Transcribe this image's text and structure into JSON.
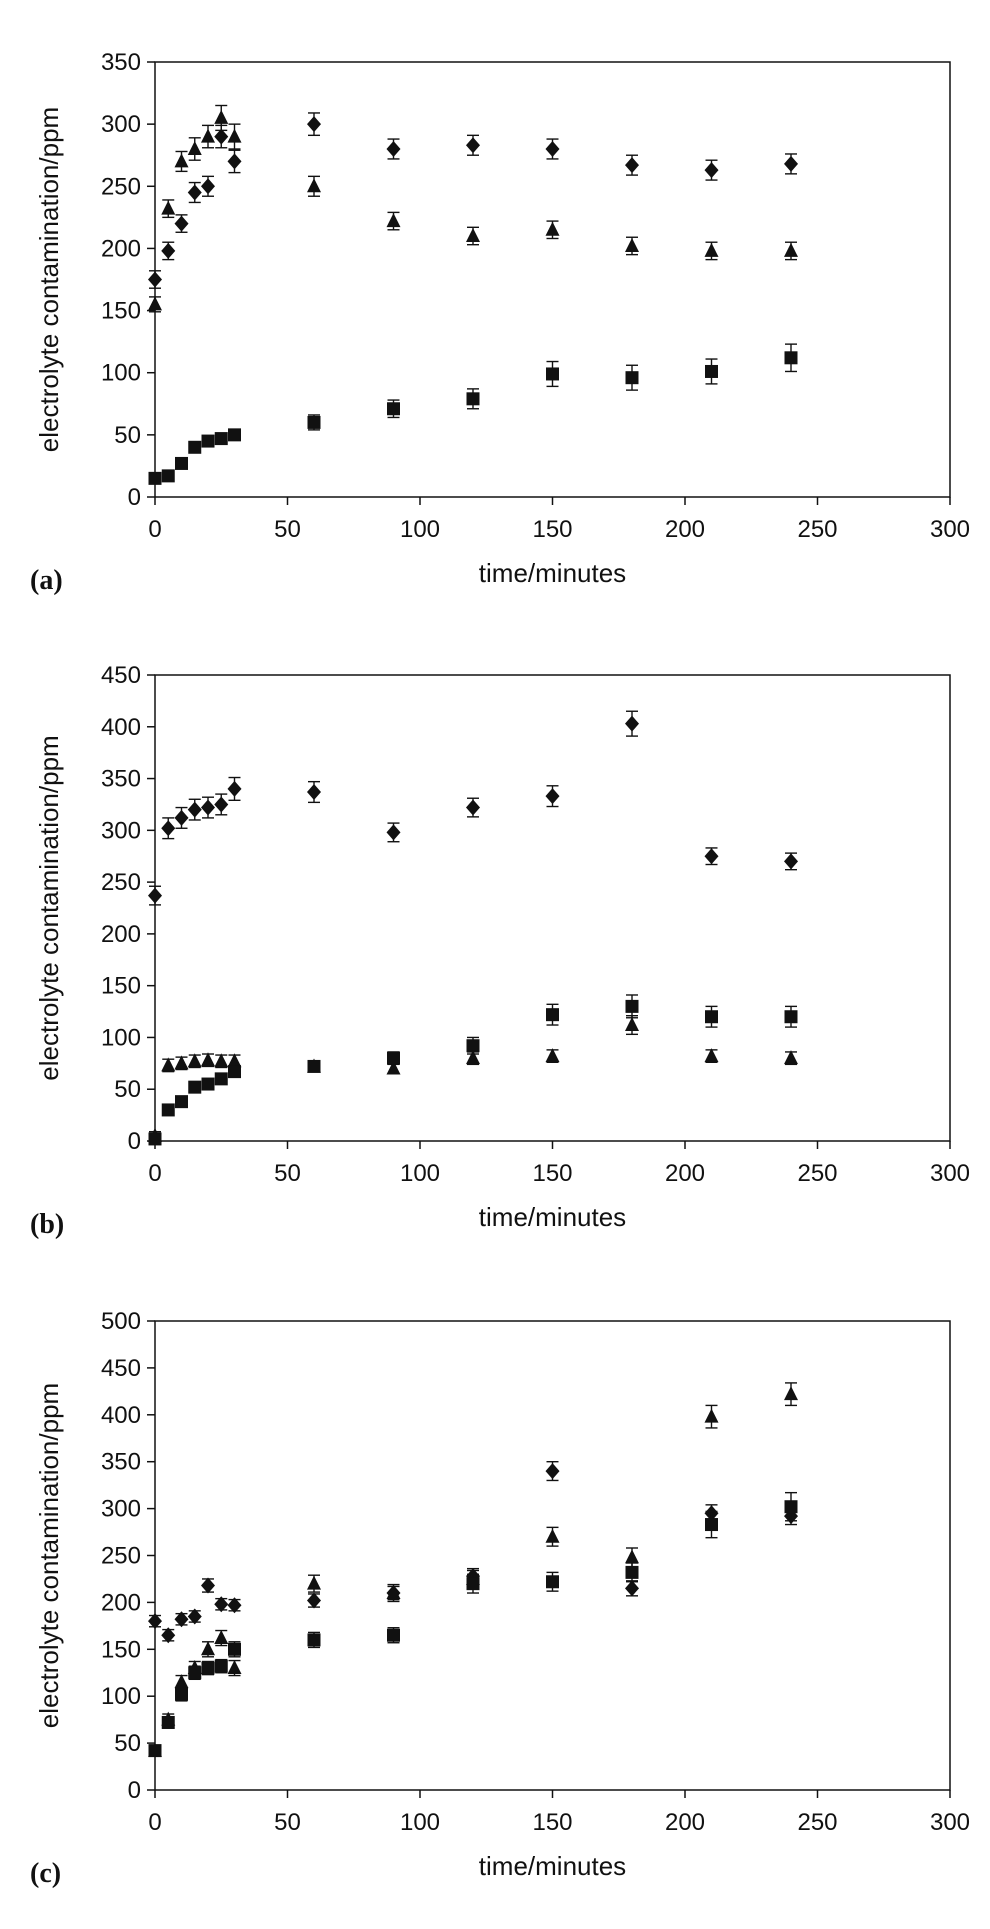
{
  "chart_data": [
    {
      "type": "scatter",
      "panel_label": "(a)",
      "xlabel": "time/minutes",
      "ylabel": "electrolyte contamination/ppm",
      "xlim": [
        0,
        300
      ],
      "ylim": [
        0,
        350
      ],
      "xticks": [
        0,
        50,
        100,
        150,
        200,
        250,
        300
      ],
      "yticks": [
        0,
        50,
        100,
        150,
        200,
        250,
        300,
        350
      ],
      "series": [
        {
          "marker": "diamond",
          "x": [
            0,
            5,
            10,
            15,
            20,
            25,
            30,
            60,
            90,
            120,
            150,
            180,
            210,
            240
          ],
          "y": [
            175,
            198,
            220,
            245,
            250,
            290,
            270,
            300,
            280,
            283,
            280,
            267,
            263,
            268
          ],
          "err": [
            7,
            7,
            7,
            8,
            8,
            9,
            9,
            9,
            8,
            8,
            8,
            8,
            8,
            8
          ]
        },
        {
          "marker": "triangle",
          "x": [
            0,
            5,
            10,
            15,
            20,
            25,
            30,
            60,
            90,
            120,
            150,
            180,
            210,
            240
          ],
          "y": [
            155,
            232,
            270,
            280,
            290,
            305,
            290,
            250,
            222,
            210,
            215,
            202,
            198,
            198
          ],
          "err": [
            6,
            7,
            8,
            9,
            9,
            10,
            10,
            8,
            7,
            7,
            7,
            7,
            7,
            7
          ]
        },
        {
          "marker": "square",
          "x": [
            0,
            5,
            10,
            15,
            20,
            25,
            30,
            60,
            90,
            120,
            150,
            180,
            210,
            240
          ],
          "y": [
            15,
            17,
            27,
            40,
            45,
            47,
            50,
            60,
            71,
            79,
            99,
            96,
            101,
            112
          ],
          "err": [
            3,
            3,
            3,
            3,
            3,
            3,
            3,
            6,
            7,
            8,
            10,
            10,
            10,
            11
          ]
        }
      ]
    },
    {
      "type": "scatter",
      "panel_label": "(b)",
      "xlabel": "time/minutes",
      "ylabel": "electrolyte contamination/ppm",
      "xlim": [
        0,
        300
      ],
      "ylim": [
        0,
        450
      ],
      "xticks": [
        0,
        50,
        100,
        150,
        200,
        250,
        300
      ],
      "yticks": [
        0,
        50,
        100,
        150,
        200,
        250,
        300,
        350,
        400,
        450
      ],
      "series": [
        {
          "marker": "diamond",
          "x": [
            0,
            5,
            10,
            15,
            20,
            25,
            30,
            60,
            90,
            120,
            150,
            180,
            210,
            240
          ],
          "y": [
            237,
            302,
            312,
            320,
            322,
            325,
            340,
            337,
            298,
            322,
            333,
            403,
            275,
            270
          ],
          "err": [
            9,
            10,
            10,
            10,
            10,
            10,
            11,
            10,
            9,
            9,
            10,
            12,
            8,
            8
          ]
        },
        {
          "marker": "triangle",
          "x": [
            0,
            5,
            10,
            15,
            20,
            25,
            30,
            60,
            90,
            120,
            150,
            180,
            210,
            240
          ],
          "y": [
            5,
            73,
            75,
            77,
            78,
            77,
            77,
            72,
            70,
            80,
            82,
            112,
            82,
            80
          ],
          "err": [
            4,
            6,
            6,
            6,
            6,
            6,
            6,
            5,
            5,
            6,
            6,
            9,
            6,
            6
          ]
        },
        {
          "marker": "square",
          "x": [
            0,
            5,
            10,
            15,
            20,
            25,
            30,
            60,
            90,
            120,
            150,
            180,
            210,
            240
          ],
          "y": [
            2,
            30,
            38,
            52,
            55,
            60,
            67,
            72,
            80,
            92,
            122,
            130,
            120,
            120
          ],
          "err": [
            3,
            3,
            3,
            3,
            3,
            3,
            4,
            5,
            6,
            8,
            10,
            11,
            10,
            10
          ]
        }
      ]
    },
    {
      "type": "scatter",
      "panel_label": "(c)",
      "xlabel": "time/minutes",
      "ylabel": "electrolyte contamination/ppm",
      "xlim": [
        0,
        300
      ],
      "ylim": [
        0,
        500
      ],
      "xticks": [
        0,
        50,
        100,
        150,
        200,
        250,
        300
      ],
      "yticks": [
        0,
        50,
        100,
        150,
        200,
        250,
        300,
        350,
        400,
        450,
        500
      ],
      "series": [
        {
          "marker": "diamond",
          "x": [
            0,
            5,
            10,
            15,
            20,
            25,
            30,
            60,
            90,
            120,
            150,
            180,
            210,
            240
          ],
          "y": [
            180,
            165,
            182,
            185,
            218,
            198,
            197,
            202,
            210,
            228,
            340,
            215,
            295,
            292
          ],
          "err": [
            6,
            6,
            6,
            6,
            7,
            6,
            6,
            7,
            7,
            8,
            10,
            8,
            9,
            9
          ]
        },
        {
          "marker": "triangle",
          "x": [
            0,
            5,
            10,
            15,
            20,
            25,
            30,
            60,
            90,
            120,
            150,
            180,
            210,
            240
          ],
          "y": [
            42,
            75,
            115,
            130,
            150,
            162,
            130,
            220,
            210,
            225,
            270,
            248,
            398,
            422
          ],
          "err": [
            4,
            6,
            7,
            7,
            8,
            8,
            8,
            9,
            9,
            9,
            10,
            10,
            12,
            12
          ]
        },
        {
          "marker": "square",
          "x": [
            0,
            5,
            10,
            15,
            20,
            25,
            30,
            60,
            90,
            120,
            150,
            180,
            210,
            240
          ],
          "y": [
            42,
            72,
            102,
            125,
            130,
            132,
            150,
            160,
            165,
            220,
            222,
            232,
            283,
            302
          ],
          "err": [
            4,
            6,
            7,
            7,
            7,
            7,
            8,
            8,
            8,
            10,
            10,
            10,
            14,
            15
          ]
        }
      ]
    }
  ]
}
